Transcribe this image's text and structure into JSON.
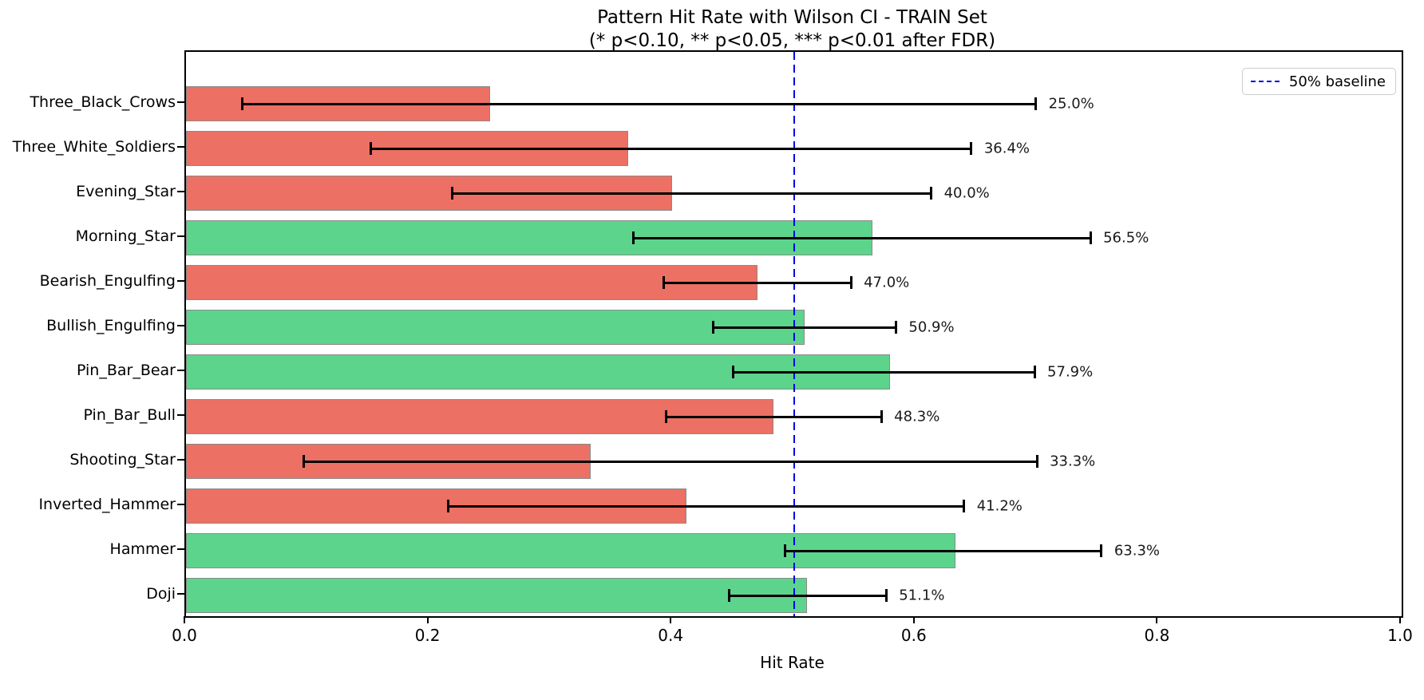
{
  "figure": {
    "title_line1": "Pattern Hit Rate with Wilson CI - TRAIN Set",
    "title_line2": "(* p<0.10, ** p<0.05, *** p<0.01 after FDR)"
  },
  "chart_data": {
    "type": "bar",
    "orientation": "horizontal",
    "title": "Pattern Hit Rate with Wilson CI - TRAIN Set",
    "subtitle": "(* p<0.10, ** p<0.05, *** p<0.01 after FDR)",
    "xlabel": "Hit Rate",
    "ylabel": "",
    "xlim": [
      0.0,
      1.0
    ],
    "xticks": [
      "0.0",
      "0.2",
      "0.4",
      "0.6",
      "0.8",
      "1.0"
    ],
    "grid": false,
    "categories": [
      "Three_Black_Crows",
      "Three_White_Soldiers",
      "Evening_Star",
      "Morning_Star",
      "Bearish_Engulfing",
      "Bullish_Engulfing",
      "Pin_Bar_Bear",
      "Pin_Bar_Bull",
      "Shooting_Star",
      "Inverted_Hammer",
      "Hammer",
      "Doji"
    ],
    "series": [
      {
        "name": "hit_rate",
        "values": [
          0.25,
          0.364,
          0.4,
          0.565,
          0.47,
          0.509,
          0.579,
          0.483,
          0.333,
          0.412,
          0.633,
          0.511
        ]
      }
    ],
    "bar_labels": [
      "25.0%",
      "36.4%",
      "40.0%",
      "56.5%",
      "47.0%",
      "50.9%",
      "57.9%",
      "48.3%",
      "33.3%",
      "41.2%",
      "63.3%",
      "51.1%"
    ],
    "ci_low": [
      0.046,
      0.152,
      0.219,
      0.368,
      0.393,
      0.434,
      0.45,
      0.395,
      0.097,
      0.216,
      0.493,
      0.447
    ],
    "ci_high": [
      0.699,
      0.646,
      0.613,
      0.744,
      0.547,
      0.584,
      0.698,
      0.572,
      0.7,
      0.64,
      0.753,
      0.576
    ],
    "bar_color_keys": [
      "below",
      "below",
      "below",
      "above",
      "below",
      "above",
      "above",
      "below",
      "below",
      "below",
      "above",
      "above"
    ],
    "colors": {
      "below": "#ec7063",
      "above": "#5dd48c",
      "bar_edge": "#8a8a8a",
      "error_bar": "#000000",
      "baseline": "#0000ee"
    },
    "baseline": {
      "value": 0.5,
      "label": "50% baseline",
      "style": "dashed"
    },
    "legend": {
      "position": "upper right",
      "entries": [
        {
          "label": "50% baseline"
        }
      ]
    }
  }
}
